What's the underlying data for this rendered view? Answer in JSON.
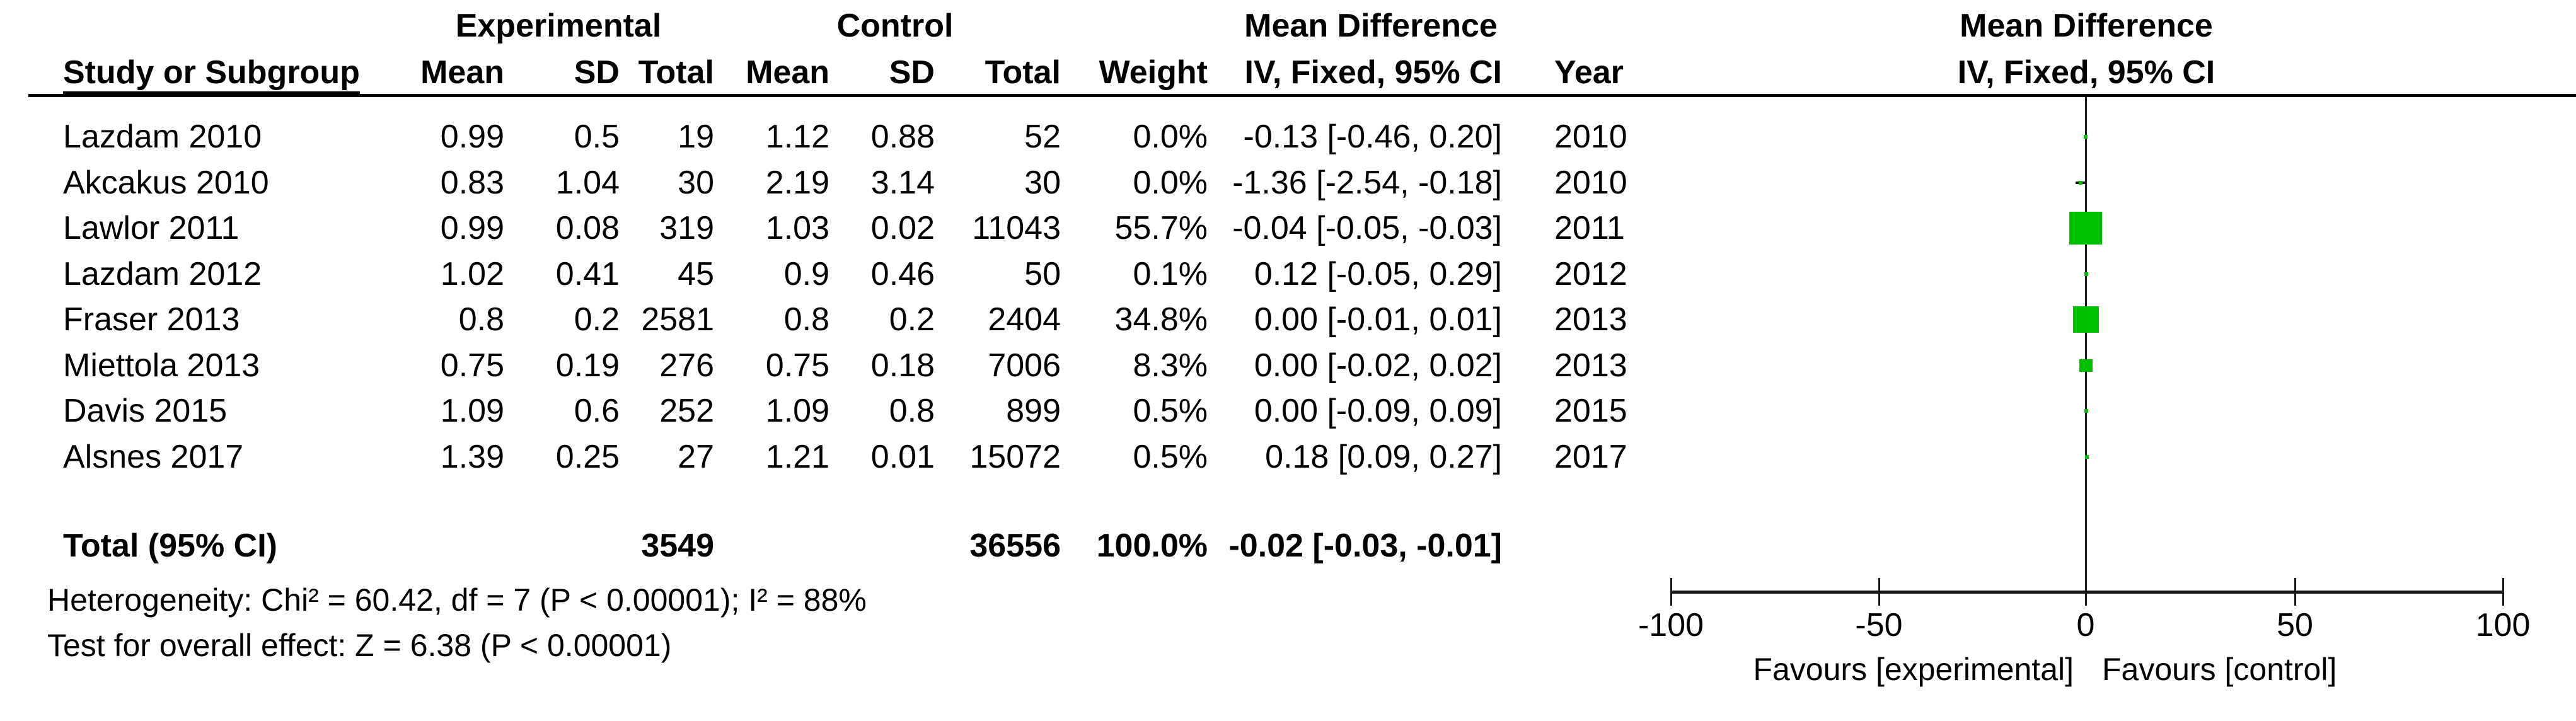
{
  "table": {
    "group_headers": {
      "experimental": "Experimental",
      "control": "Control",
      "mean_difference": "Mean Difference",
      "mean_difference_plot": "Mean Difference"
    },
    "columns": {
      "study": "Study or Subgroup",
      "mean": "Mean",
      "sd": "SD",
      "total": "Total",
      "weight": "Weight",
      "ci": "IV, Fixed, 95% CI",
      "year": "Year",
      "ci_plot": "IV, Fixed, 95% CI"
    },
    "rows": [
      {
        "study": "Lazdam 2010",
        "exp_mean": "0.99",
        "exp_sd": "0.5",
        "exp_total": "19",
        "ctl_mean": "1.12",
        "ctl_sd": "0.88",
        "ctl_total": "52",
        "weight": "0.0%",
        "ci": "-0.13 [-0.46, 0.20]",
        "year": "2010"
      },
      {
        "study": "Akcakus 2010",
        "exp_mean": "0.83",
        "exp_sd": "1.04",
        "exp_total": "30",
        "ctl_mean": "2.19",
        "ctl_sd": "3.14",
        "ctl_total": "30",
        "weight": "0.0%",
        "ci": "-1.36 [-2.54, -0.18]",
        "year": "2010"
      },
      {
        "study": "Lawlor 2011",
        "exp_mean": "0.99",
        "exp_sd": "0.08",
        "exp_total": "319",
        "ctl_mean": "1.03",
        "ctl_sd": "0.02",
        "ctl_total": "11043",
        "weight": "55.7%",
        "ci": "-0.04 [-0.05, -0.03]",
        "year": "2011"
      },
      {
        "study": "Lazdam 2012",
        "exp_mean": "1.02",
        "exp_sd": "0.41",
        "exp_total": "45",
        "ctl_mean": "0.9",
        "ctl_sd": "0.46",
        "ctl_total": "50",
        "weight": "0.1%",
        "ci": "0.12 [-0.05, 0.29]",
        "year": "2012"
      },
      {
        "study": "Fraser 2013",
        "exp_mean": "0.8",
        "exp_sd": "0.2",
        "exp_total": "2581",
        "ctl_mean": "0.8",
        "ctl_sd": "0.2",
        "ctl_total": "2404",
        "weight": "34.8%",
        "ci": "0.00 [-0.01, 0.01]",
        "year": "2013"
      },
      {
        "study": "Miettola 2013",
        "exp_mean": "0.75",
        "exp_sd": "0.19",
        "exp_total": "276",
        "ctl_mean": "0.75",
        "ctl_sd": "0.18",
        "ctl_total": "7006",
        "weight": "8.3%",
        "ci": "0.00 [-0.02, 0.02]",
        "year": "2013"
      },
      {
        "study": "Davis 2015",
        "exp_mean": "1.09",
        "exp_sd": "0.6",
        "exp_total": "252",
        "ctl_mean": "1.09",
        "ctl_sd": "0.8",
        "ctl_total": "899",
        "weight": "0.5%",
        "ci": "0.00 [-0.09, 0.09]",
        "year": "2015"
      },
      {
        "study": "Alsnes 2017",
        "exp_mean": "1.39",
        "exp_sd": "0.25",
        "exp_total": "27",
        "ctl_mean": "1.21",
        "ctl_sd": "0.01",
        "ctl_total": "15072",
        "weight": "0.5%",
        "ci": "0.18 [0.09, 0.27]",
        "year": "2017"
      }
    ],
    "total_row": {
      "label": "Total (95% CI)",
      "exp_total": "3549",
      "ctl_total": "36556",
      "weight": "100.0%",
      "ci": "-0.02 [-0.03, -0.01]"
    },
    "heterogeneity": "Heterogeneity: Chi² = 60.42, df = 7 (P < 0.00001); I² = 88%",
    "overall_effect": "Test for overall effect: Z = 6.38 (P < 0.00001)"
  },
  "plot": {
    "marker_color": "#00c000",
    "favours_left": "Favours [experimental]",
    "favours_right": "Favours [control]"
  },
  "chart_data": {
    "type": "scatter",
    "subtype": "forest-plot",
    "title": "Mean Difference IV, Fixed, 95% CI",
    "effect_measure": "Mean Difference",
    "model": "IV, Fixed, 95% CI",
    "xlim": [
      -100,
      100
    ],
    "x_ticks": [
      -100,
      -50,
      0,
      50,
      100
    ],
    "xlabel_left": "Favours [experimental]",
    "xlabel_right": "Favours [control]",
    "studies": [
      {
        "name": "Lazdam 2010",
        "md": -0.13,
        "ci_low": -0.46,
        "ci_high": 0.2,
        "weight_pct": 0.0,
        "year": 2010
      },
      {
        "name": "Akcakus 2010",
        "md": -1.36,
        "ci_low": -2.54,
        "ci_high": -0.18,
        "weight_pct": 0.0,
        "year": 2010
      },
      {
        "name": "Lawlor 2011",
        "md": -0.04,
        "ci_low": -0.05,
        "ci_high": -0.03,
        "weight_pct": 55.7,
        "year": 2011
      },
      {
        "name": "Lazdam 2012",
        "md": 0.12,
        "ci_low": -0.05,
        "ci_high": 0.29,
        "weight_pct": 0.1,
        "year": 2012
      },
      {
        "name": "Fraser 2013",
        "md": 0.0,
        "ci_low": -0.01,
        "ci_high": 0.01,
        "weight_pct": 34.8,
        "year": 2013
      },
      {
        "name": "Miettola 2013",
        "md": 0.0,
        "ci_low": -0.02,
        "ci_high": 0.02,
        "weight_pct": 8.3,
        "year": 2013
      },
      {
        "name": "Davis 2015",
        "md": 0.0,
        "ci_low": -0.09,
        "ci_high": 0.09,
        "weight_pct": 0.5,
        "year": 2015
      },
      {
        "name": "Alsnes 2017",
        "md": 0.18,
        "ci_low": 0.09,
        "ci_high": 0.27,
        "weight_pct": 0.5,
        "year": 2017
      }
    ],
    "total": {
      "md": -0.02,
      "ci_low": -0.03,
      "ci_high": -0.01,
      "exp_total": 3549,
      "ctl_total": 36556,
      "weight_pct": 100.0
    },
    "heterogeneity": {
      "chi2": 60.42,
      "df": 7,
      "p": "< 0.00001",
      "i2_pct": 88
    },
    "overall_effect": {
      "z": 6.38,
      "p": "< 0.00001"
    }
  }
}
